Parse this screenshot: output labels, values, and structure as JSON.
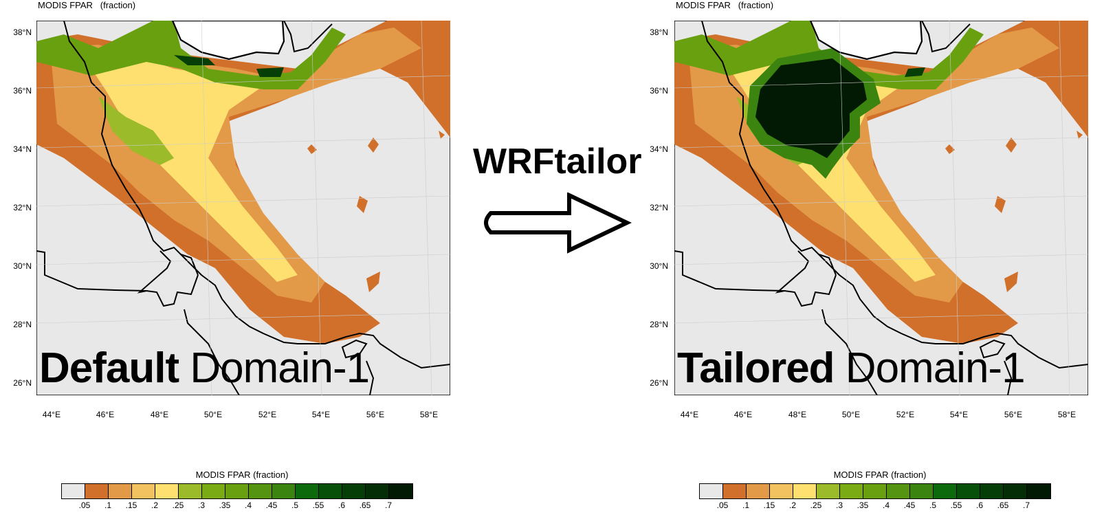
{
  "panels": [
    {
      "id": "left",
      "title": "MODIS FPAR   (fraction)",
      "label_bold": "Default",
      "label_rest": " Domain-1",
      "tailored": false
    },
    {
      "id": "right",
      "title": "MODIS FPAR   (fraction)",
      "label_bold": "Tailored",
      "label_rest": " Domain-1",
      "tailored": true
    }
  ],
  "center_label": "WRFtailor",
  "lat_ticks": [
    "38°N",
    "36°N",
    "34°N",
    "32°N",
    "30°N",
    "28°N",
    "26°N"
  ],
  "lon_ticks": [
    "44°E",
    "46°E",
    "48°E",
    "50°E",
    "52°E",
    "54°E",
    "56°E",
    "58°E"
  ],
  "colorbar": {
    "title": "MODIS FPAR  (fraction)",
    "labels": [
      ".05",
      ".1",
      ".15",
      ".2",
      ".25",
      ".3",
      ".35",
      ".4",
      ".45",
      ".5",
      ".55",
      ".6",
      ".65",
      ".7"
    ],
    "colors": [
      "#e8e8e8",
      "#d0702a",
      "#e39a48",
      "#f2c160",
      "#fde070",
      "#9bbb2a",
      "#7aaa14",
      "#68a010",
      "#559410",
      "#3b8410",
      "#0c6a0c",
      "#07500a",
      "#063e08",
      "#042e06",
      "#021a03"
    ]
  }
}
